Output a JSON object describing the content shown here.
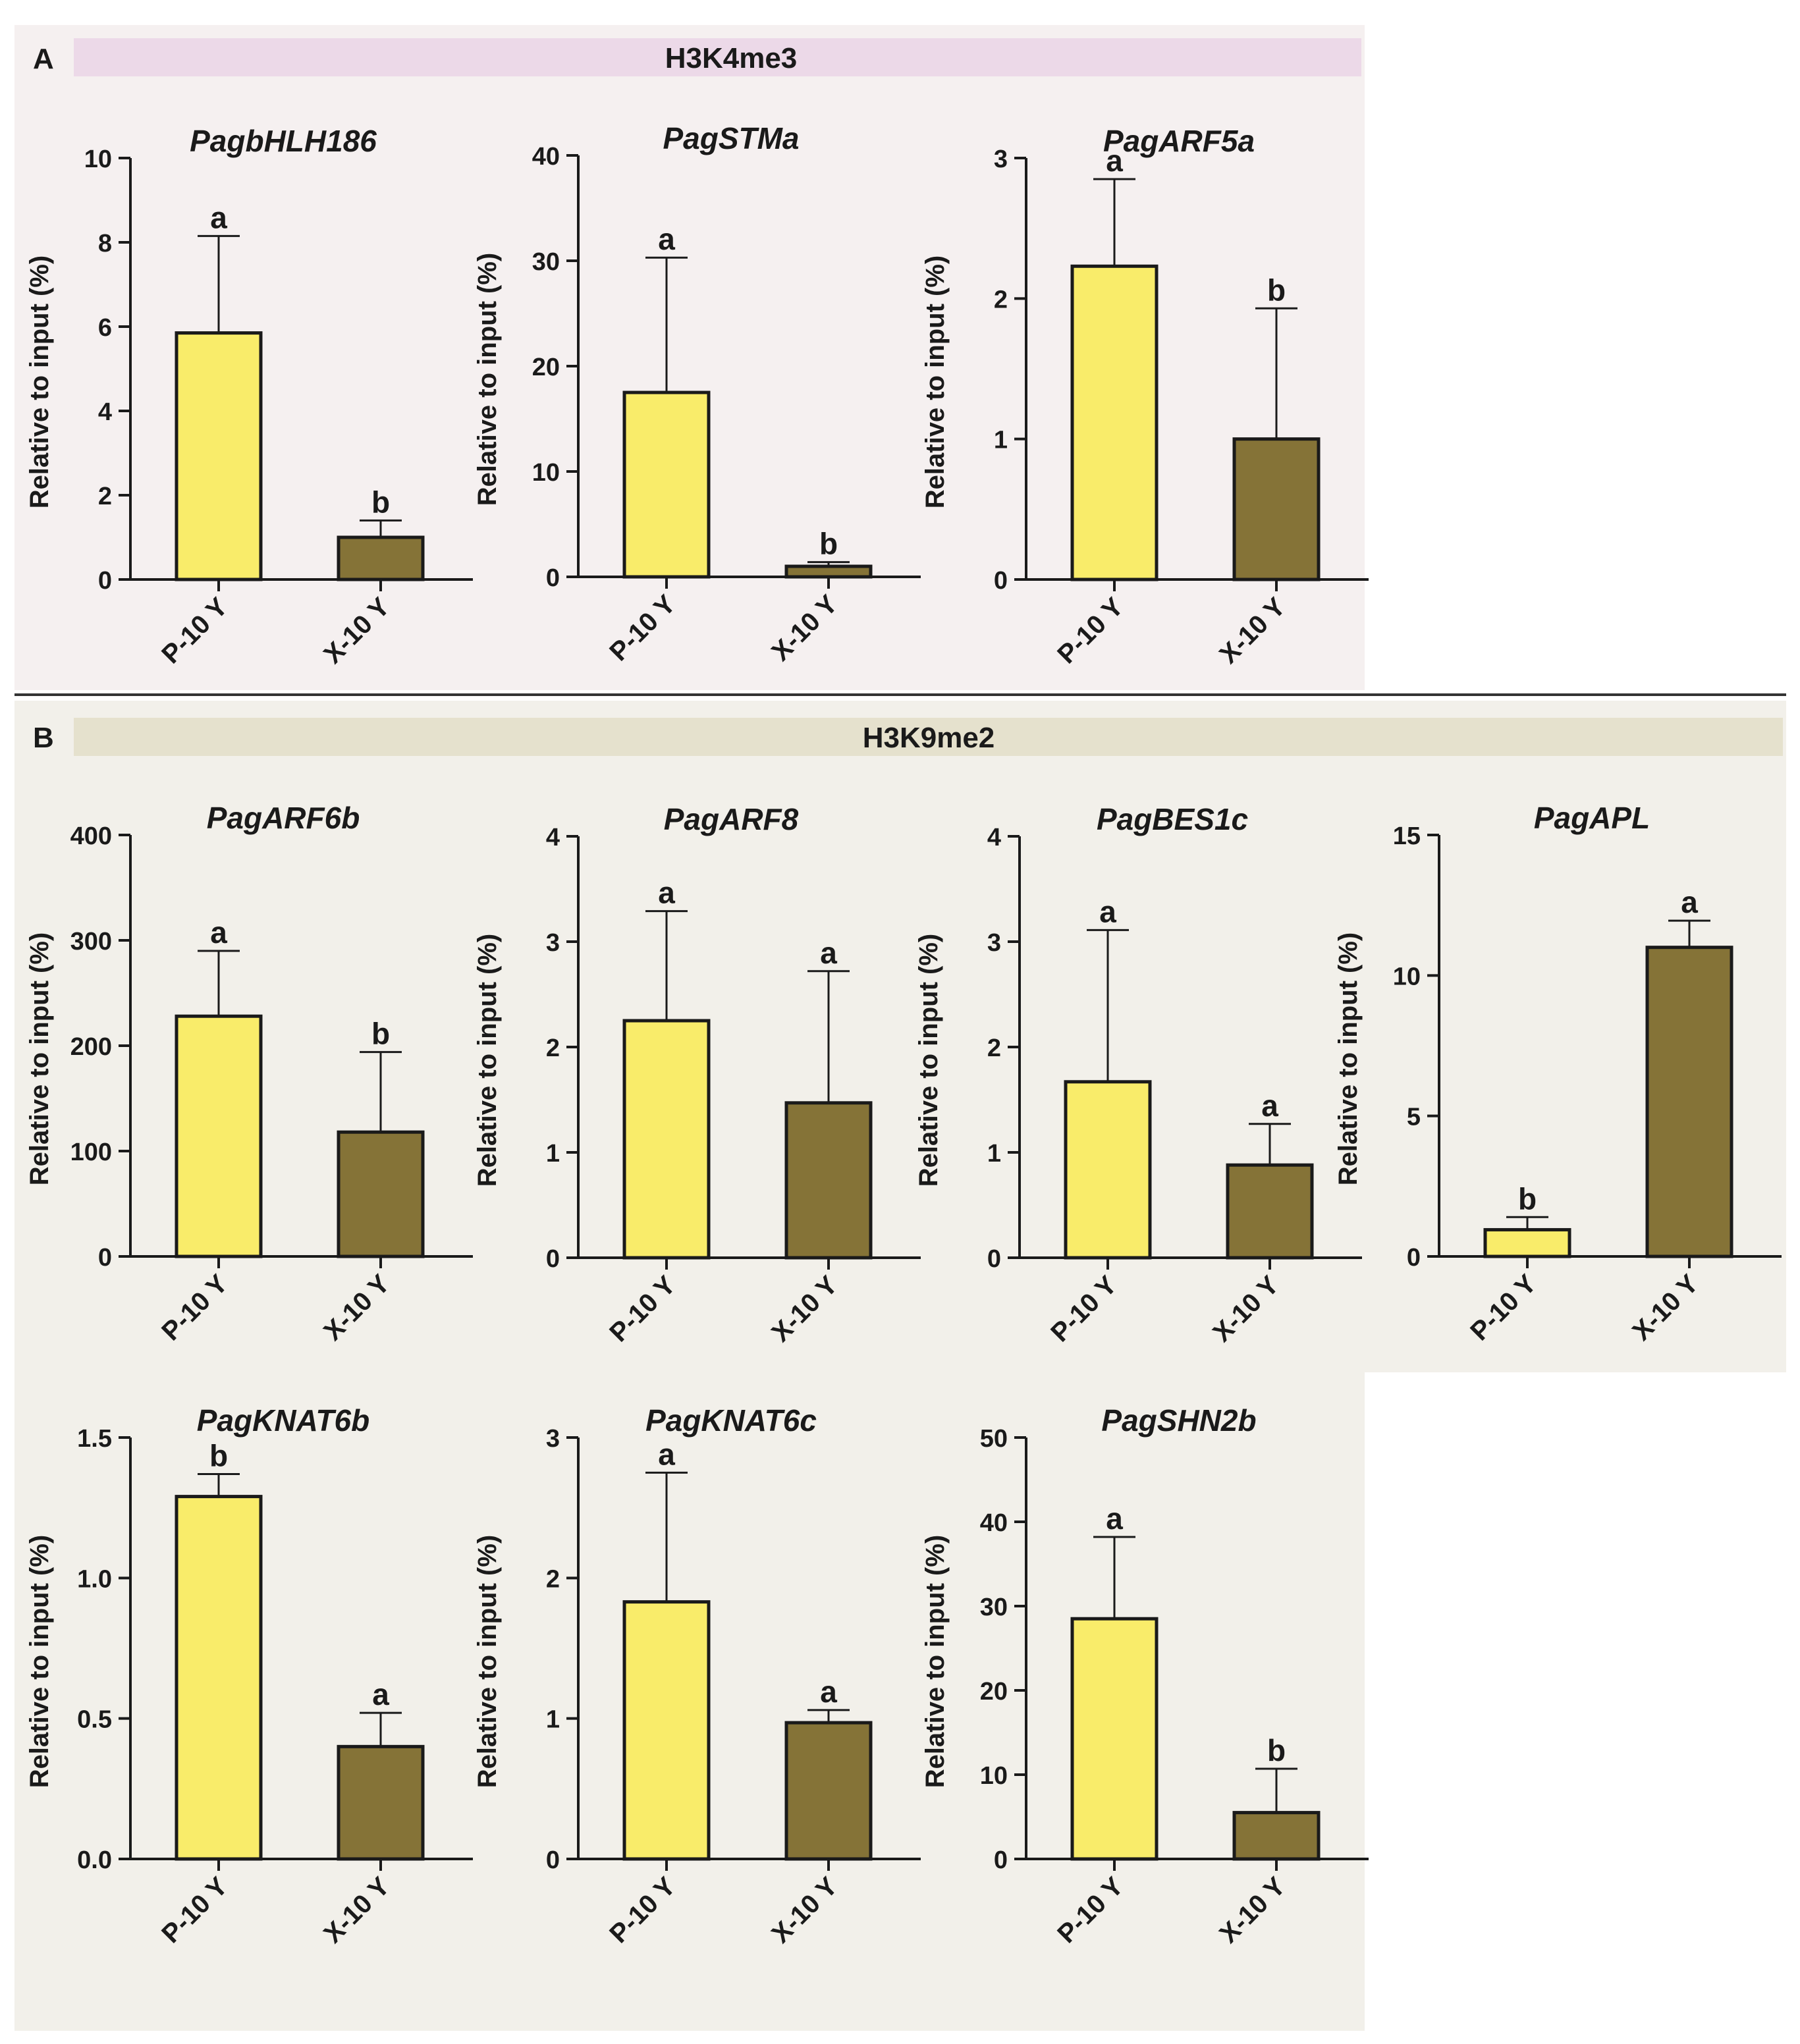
{
  "colors": {
    "panel_a_bg": "#f5f0f0",
    "panel_b_bg": "#f2f0ea",
    "band_a": "#ecd9e8",
    "band_b": "#e5e1cd",
    "bar_p": "#f9ec6a",
    "bar_x": "#857337",
    "ink": "#1a1a1a"
  },
  "panels": [
    {
      "letter": "A",
      "title": "H3K4me3"
    },
    {
      "letter": "B",
      "title": "H3K9me2"
    }
  ],
  "chart_data": [
    {
      "type": "bar",
      "panel": "A",
      "title": "PagbHLH186",
      "ylabel": "Relative to input  (%)",
      "categories": [
        "P-10 Y",
        "X-10 Y"
      ],
      "values": [
        5.85,
        1.0
      ],
      "error": [
        2.3,
        0.4
      ],
      "letters": [
        "a",
        "b"
      ],
      "ylim": [
        0,
        10
      ],
      "yticks": [
        0,
        2,
        4,
        6,
        8,
        10
      ]
    },
    {
      "type": "bar",
      "panel": "A",
      "title": "PagSTMa",
      "ylabel": "Relative to input  (%)",
      "categories": [
        "P-10 Y",
        "X-10 Y"
      ],
      "values": [
        17.5,
        1.0
      ],
      "error": [
        12.8,
        0.4
      ],
      "letters": [
        "a",
        "b"
      ],
      "ylim": [
        0,
        40
      ],
      "yticks": [
        0,
        10,
        20,
        30,
        40
      ]
    },
    {
      "type": "bar",
      "panel": "A",
      "title": "PagARF5a",
      "ylabel": "Relative to input  (%)",
      "categories": [
        "P-10 Y",
        "X-10 Y"
      ],
      "values": [
        2.23,
        1.0
      ],
      "error": [
        0.62,
        0.93
      ],
      "letters": [
        "a",
        "b"
      ],
      "ylim": [
        0,
        3
      ],
      "yticks": [
        0,
        1,
        2,
        3
      ]
    },
    {
      "type": "bar",
      "panel": "B",
      "title": "PagARF6b",
      "ylabel": "Relative to input  (%)",
      "categories": [
        "P-10 Y",
        "X-10 Y"
      ],
      "values": [
        228,
        118
      ],
      "error": [
        62,
        76
      ],
      "letters": [
        "a",
        "b"
      ],
      "ylim": [
        0,
        400
      ],
      "yticks": [
        0,
        100,
        200,
        300,
        400
      ]
    },
    {
      "type": "bar",
      "panel": "B",
      "title": "PagARF8",
      "ylabel": "Relative to input  (%)",
      "categories": [
        "P-10 Y",
        "X-10 Y"
      ],
      "values": [
        2.25,
        1.47
      ],
      "error": [
        1.04,
        1.25
      ],
      "letters": [
        "a",
        "a"
      ],
      "ylim": [
        0,
        4
      ],
      "yticks": [
        0,
        1,
        2,
        3,
        4
      ]
    },
    {
      "type": "bar",
      "panel": "B",
      "title": "PagBES1c",
      "ylabel": "Relative to input  (%)",
      "categories": [
        "P-10 Y",
        "X-10 Y"
      ],
      "values": [
        1.67,
        0.88
      ],
      "error": [
        1.44,
        0.39
      ],
      "letters": [
        "a",
        "a"
      ],
      "ylim": [
        0,
        4
      ],
      "yticks": [
        0,
        1,
        2,
        3,
        4
      ]
    },
    {
      "type": "bar",
      "panel": "B",
      "title": "PagAPL",
      "ylabel": "Relative to input  (%)",
      "categories": [
        "P-10 Y",
        "X-10 Y"
      ],
      "values": [
        0.95,
        11.0
      ],
      "error": [
        0.45,
        0.95
      ],
      "letters": [
        "b",
        "a"
      ],
      "ylim": [
        0,
        15
      ],
      "yticks": [
        0,
        5,
        10,
        15
      ]
    },
    {
      "type": "bar",
      "panel": "B",
      "title": "PagKNAT6b",
      "ylabel": "Relative to input  (%)",
      "categories": [
        "P-10 Y",
        "X-10 Y"
      ],
      "values": [
        1.29,
        0.4
      ],
      "error": [
        0.08,
        0.12
      ],
      "letters": [
        "b",
        "a"
      ],
      "ylim": [
        0,
        1.5
      ],
      "yticks": [
        "0.0",
        "0.5",
        "1.0",
        "1.5"
      ]
    },
    {
      "type": "bar",
      "panel": "B",
      "title": "PagKNAT6c",
      "ylabel": "Relative to input  (%)",
      "categories": [
        "P-10 Y",
        "X-10 Y"
      ],
      "values": [
        1.83,
        0.97
      ],
      "error": [
        0.92,
        0.09
      ],
      "letters": [
        "a",
        "a"
      ],
      "ylim": [
        0,
        3
      ],
      "yticks": [
        0,
        1,
        2,
        3
      ]
    },
    {
      "type": "bar",
      "panel": "B",
      "title": "PagSHN2b",
      "ylabel": "Relative to input  (%)",
      "categories": [
        "P-10 Y",
        "X-10 Y"
      ],
      "values": [
        28.5,
        5.5
      ],
      "error": [
        9.7,
        5.2
      ],
      "letters": [
        "a",
        "b"
      ],
      "ylim": [
        0,
        50
      ],
      "yticks": [
        0,
        10,
        20,
        30,
        40,
        50
      ]
    }
  ]
}
